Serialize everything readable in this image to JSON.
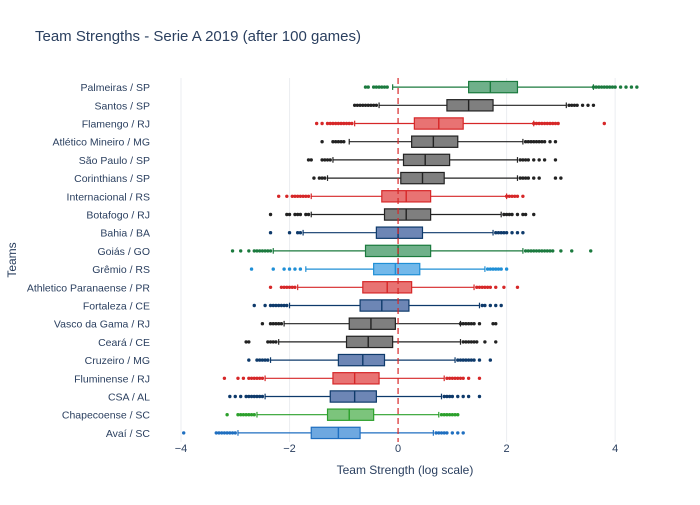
{
  "chart_data": {
    "type": "box",
    "title": "Team Strengths - Serie A 2019 (after 100 games)",
    "xlabel": "Team Strength (log scale)",
    "ylabel": "Teams",
    "xlim": [
      -4.35,
      4.55
    ],
    "xticks": [
      -4,
      -2,
      0,
      2,
      4
    ],
    "xtick_labels": [
      "−4",
      "−2",
      "0",
      "2",
      "4"
    ],
    "reference_line": {
      "x": 0,
      "color": "#d62728",
      "style": "dashed"
    },
    "grid": true,
    "legend": "none",
    "teams": [
      {
        "name": "Palmeiras / SP",
        "color": "#1b7a3e",
        "fill": "#6fb08a",
        "q1": 1.3,
        "median": 1.7,
        "q3": 2.2,
        "wl": -0.1,
        "wh": 3.6,
        "outliers": [
          -0.6,
          -0.55,
          -0.45,
          -0.4,
          -0.35,
          -0.3,
          -0.25,
          -0.2,
          3.6,
          3.65,
          3.7,
          3.75,
          3.8,
          3.85,
          3.9,
          3.95,
          4.0,
          4.1,
          4.2,
          4.3,
          4.4
        ]
      },
      {
        "name": "Santos / SP",
        "color": "#222222",
        "fill": "#7f7f7f",
        "q1": 0.9,
        "median": 1.3,
        "q3": 1.75,
        "wl": -0.35,
        "wh": 3.1,
        "outliers": [
          -0.8,
          -0.75,
          -0.7,
          -0.65,
          -0.6,
          -0.55,
          -0.5,
          -0.45,
          -0.4,
          3.15,
          3.2,
          3.25,
          3.3,
          3.4,
          3.5,
          3.6
        ]
      },
      {
        "name": "Flamengo / RJ",
        "color": "#d62728",
        "fill": "#e87373",
        "q1": 0.3,
        "median": 0.75,
        "q3": 1.2,
        "wl": -0.8,
        "wh": 2.5,
        "outliers": [
          -1.5,
          -1.4,
          -1.3,
          -1.25,
          -1.2,
          -1.15,
          -1.1,
          -1.05,
          -1.0,
          -0.95,
          -0.9,
          -0.85,
          2.5,
          2.55,
          2.6,
          2.65,
          2.7,
          2.75,
          2.8,
          2.85,
          2.9,
          2.95,
          3.8
        ]
      },
      {
        "name": "Atlético Mineiro / MG",
        "color": "#222222",
        "fill": "#7f7f7f",
        "q1": 0.25,
        "median": 0.65,
        "q3": 1.1,
        "wl": -0.9,
        "wh": 2.3,
        "outliers": [
          -1.4,
          -1.2,
          -1.15,
          -1.1,
          -1.05,
          -1.0,
          2.35,
          2.4,
          2.45,
          2.5,
          2.55,
          2.6,
          2.65,
          2.7,
          2.8,
          2.9
        ]
      },
      {
        "name": "São Paulo / SP",
        "color": "#222222",
        "fill": "#7f7f7f",
        "q1": 0.1,
        "median": 0.5,
        "q3": 0.95,
        "wl": -1.2,
        "wh": 2.2,
        "outliers": [
          -1.65,
          -1.6,
          -1.4,
          -1.35,
          -1.3,
          -1.25,
          2.25,
          2.3,
          2.35,
          2.4,
          2.5,
          2.6,
          2.7,
          2.9
        ]
      },
      {
        "name": "Corinthians / SP",
        "color": "#222222",
        "fill": "#7f7f7f",
        "q1": 0.05,
        "median": 0.45,
        "q3": 0.85,
        "wl": -1.3,
        "wh": 2.2,
        "outliers": [
          -1.55,
          -1.45,
          -1.4,
          -1.35,
          2.25,
          2.3,
          2.35,
          2.4,
          2.5,
          2.6,
          2.9,
          3.0
        ]
      },
      {
        "name": "Internacional / RS",
        "color": "#d62728",
        "fill": "#e87373",
        "q1": -0.3,
        "median": 0.15,
        "q3": 0.6,
        "wl": -1.6,
        "wh": 2.0,
        "outliers": [
          -2.2,
          -2.05,
          -1.95,
          -1.9,
          -1.85,
          -1.8,
          -1.75,
          -1.7,
          -1.65,
          2.0,
          2.05,
          2.1,
          2.15,
          2.2,
          2.3
        ]
      },
      {
        "name": "Botafogo / RJ",
        "color": "#222222",
        "fill": "#7f7f7f",
        "q1": -0.25,
        "median": 0.15,
        "q3": 0.6,
        "wl": -1.6,
        "wh": 1.9,
        "outliers": [
          -2.35,
          -2.05,
          -2.0,
          -1.9,
          -1.85,
          -1.8,
          -1.7,
          -1.65,
          1.95,
          2.0,
          2.05,
          2.1,
          2.2,
          2.3,
          2.35,
          2.5
        ]
      },
      {
        "name": "Bahia / BA",
        "color": "#0e3a6b",
        "fill": "#6d86b5",
        "q1": -0.4,
        "median": 0.0,
        "q3": 0.45,
        "wl": -1.75,
        "wh": 1.75,
        "outliers": [
          -2.35,
          -2.0,
          -1.85,
          -1.8,
          1.8,
          1.85,
          1.9,
          1.95,
          2.0,
          2.1,
          2.2,
          2.3
        ]
      },
      {
        "name": "Goiás / GO",
        "color": "#1b7a3e",
        "fill": "#6fb08a",
        "q1": -0.6,
        "median": 0.0,
        "q3": 0.6,
        "wl": -2.3,
        "wh": 2.3,
        "outliers": [
          -3.05,
          -2.9,
          -2.75,
          -2.65,
          -2.6,
          -2.55,
          -2.5,
          -2.45,
          -2.4,
          -2.35,
          2.35,
          2.4,
          2.45,
          2.5,
          2.55,
          2.6,
          2.65,
          2.7,
          2.75,
          2.8,
          2.85,
          3.0,
          3.2,
          3.55
        ]
      },
      {
        "name": "Grêmio / RS",
        "color": "#1f8fd6",
        "fill": "#72b8ea",
        "q1": -0.45,
        "median": -0.05,
        "q3": 0.4,
        "wl": -1.7,
        "wh": 1.6,
        "outliers": [
          -2.7,
          -2.3,
          -2.1,
          -2.0,
          -1.9,
          -1.8,
          1.65,
          1.7,
          1.75,
          1.8,
          1.85,
          1.9,
          2.0
        ]
      },
      {
        "name": "Athletico Paranaense / PR",
        "color": "#d62728",
        "fill": "#e87373",
        "q1": -0.65,
        "median": -0.2,
        "q3": 0.25,
        "wl": -1.85,
        "wh": 1.4,
        "outliers": [
          -2.35,
          -2.15,
          -2.1,
          -2.05,
          -2.0,
          -1.95,
          -1.9,
          1.45,
          1.5,
          1.55,
          1.6,
          1.65,
          1.7,
          1.8,
          1.95,
          2.2
        ]
      },
      {
        "name": "Fortaleza / CE",
        "color": "#0e3a6b",
        "fill": "#6d86b5",
        "q1": -0.7,
        "median": -0.3,
        "q3": 0.2,
        "wl": -2.0,
        "wh": 1.5,
        "outliers": [
          -2.65,
          -2.45,
          -2.35,
          -2.3,
          -2.25,
          -2.2,
          -2.15,
          -2.1,
          -2.05,
          1.55,
          1.6,
          1.7,
          1.8,
          1.9
        ]
      },
      {
        "name": "Vasco da Gama / RJ",
        "color": "#222222",
        "fill": "#7f7f7f",
        "q1": -0.9,
        "median": -0.5,
        "q3": -0.05,
        "wl": -2.1,
        "wh": 1.15,
        "outliers": [
          -2.5,
          -2.35,
          -2.3,
          -2.25,
          -2.2,
          -2.15,
          1.15,
          1.2,
          1.25,
          1.3,
          1.35,
          1.4,
          1.5,
          1.75,
          1.8
        ]
      },
      {
        "name": "Ceará / CE",
        "color": "#222222",
        "fill": "#7f7f7f",
        "q1": -0.95,
        "median": -0.55,
        "q3": -0.1,
        "wl": -2.2,
        "wh": 1.15,
        "outliers": [
          -2.8,
          -2.75,
          -2.4,
          -2.35,
          -2.3,
          -2.25,
          1.2,
          1.25,
          1.3,
          1.35,
          1.4,
          1.45,
          1.6,
          1.8
        ]
      },
      {
        "name": "Cruzeiro / MG",
        "color": "#0e3a6b",
        "fill": "#6d86b5",
        "q1": -1.1,
        "median": -0.65,
        "q3": -0.25,
        "wl": -2.35,
        "wh": 1.05,
        "outliers": [
          -2.75,
          -2.6,
          -2.55,
          -2.5,
          -2.45,
          -2.4,
          1.1,
          1.15,
          1.2,
          1.25,
          1.3,
          1.35,
          1.4,
          1.5,
          1.7
        ]
      },
      {
        "name": "Fluminense / RJ",
        "color": "#d62728",
        "fill": "#e87373",
        "q1": -1.2,
        "median": -0.8,
        "q3": -0.35,
        "wl": -2.45,
        "wh": 0.85,
        "outliers": [
          -3.2,
          -2.95,
          -2.85,
          -2.75,
          -2.7,
          -2.65,
          -2.6,
          -2.55,
          -2.5,
          0.9,
          0.95,
          1.0,
          1.05,
          1.1,
          1.15,
          1.2,
          1.3,
          1.5
        ]
      },
      {
        "name": "CSA / AL",
        "color": "#0e3a6b",
        "fill": "#6d86b5",
        "q1": -1.25,
        "median": -0.8,
        "q3": -0.4,
        "wl": -2.45,
        "wh": 0.8,
        "outliers": [
          -3.1,
          -3.0,
          -2.9,
          -2.8,
          -2.75,
          -2.7,
          -2.65,
          -2.6,
          -2.55,
          -2.5,
          0.85,
          0.9,
          0.95,
          1.0,
          1.1,
          1.2,
          1.3,
          1.5
        ]
      },
      {
        "name": "Chapecoense / SC",
        "color": "#2ca02c",
        "fill": "#7cc47c",
        "q1": -1.3,
        "median": -0.9,
        "q3": -0.45,
        "wl": -2.6,
        "wh": 0.75,
        "outliers": [
          -3.15,
          -2.95,
          -2.9,
          -2.85,
          -2.8,
          -2.75,
          -2.7,
          -2.65,
          0.8,
          0.85,
          0.9,
          0.95,
          1.0,
          1.05,
          1.1
        ]
      },
      {
        "name": "Avaí / SC",
        "color": "#1f6fc0",
        "fill": "#6ea8e0",
        "q1": -1.6,
        "median": -1.1,
        "q3": -0.7,
        "wl": -2.95,
        "wh": 0.65,
        "outliers": [
          -3.95,
          -3.35,
          -3.3,
          -3.25,
          -3.2,
          -3.15,
          -3.1,
          -3.05,
          -3.0,
          0.7,
          0.75,
          0.8,
          0.85,
          0.9,
          1.0,
          1.1,
          1.2
        ]
      }
    ]
  }
}
